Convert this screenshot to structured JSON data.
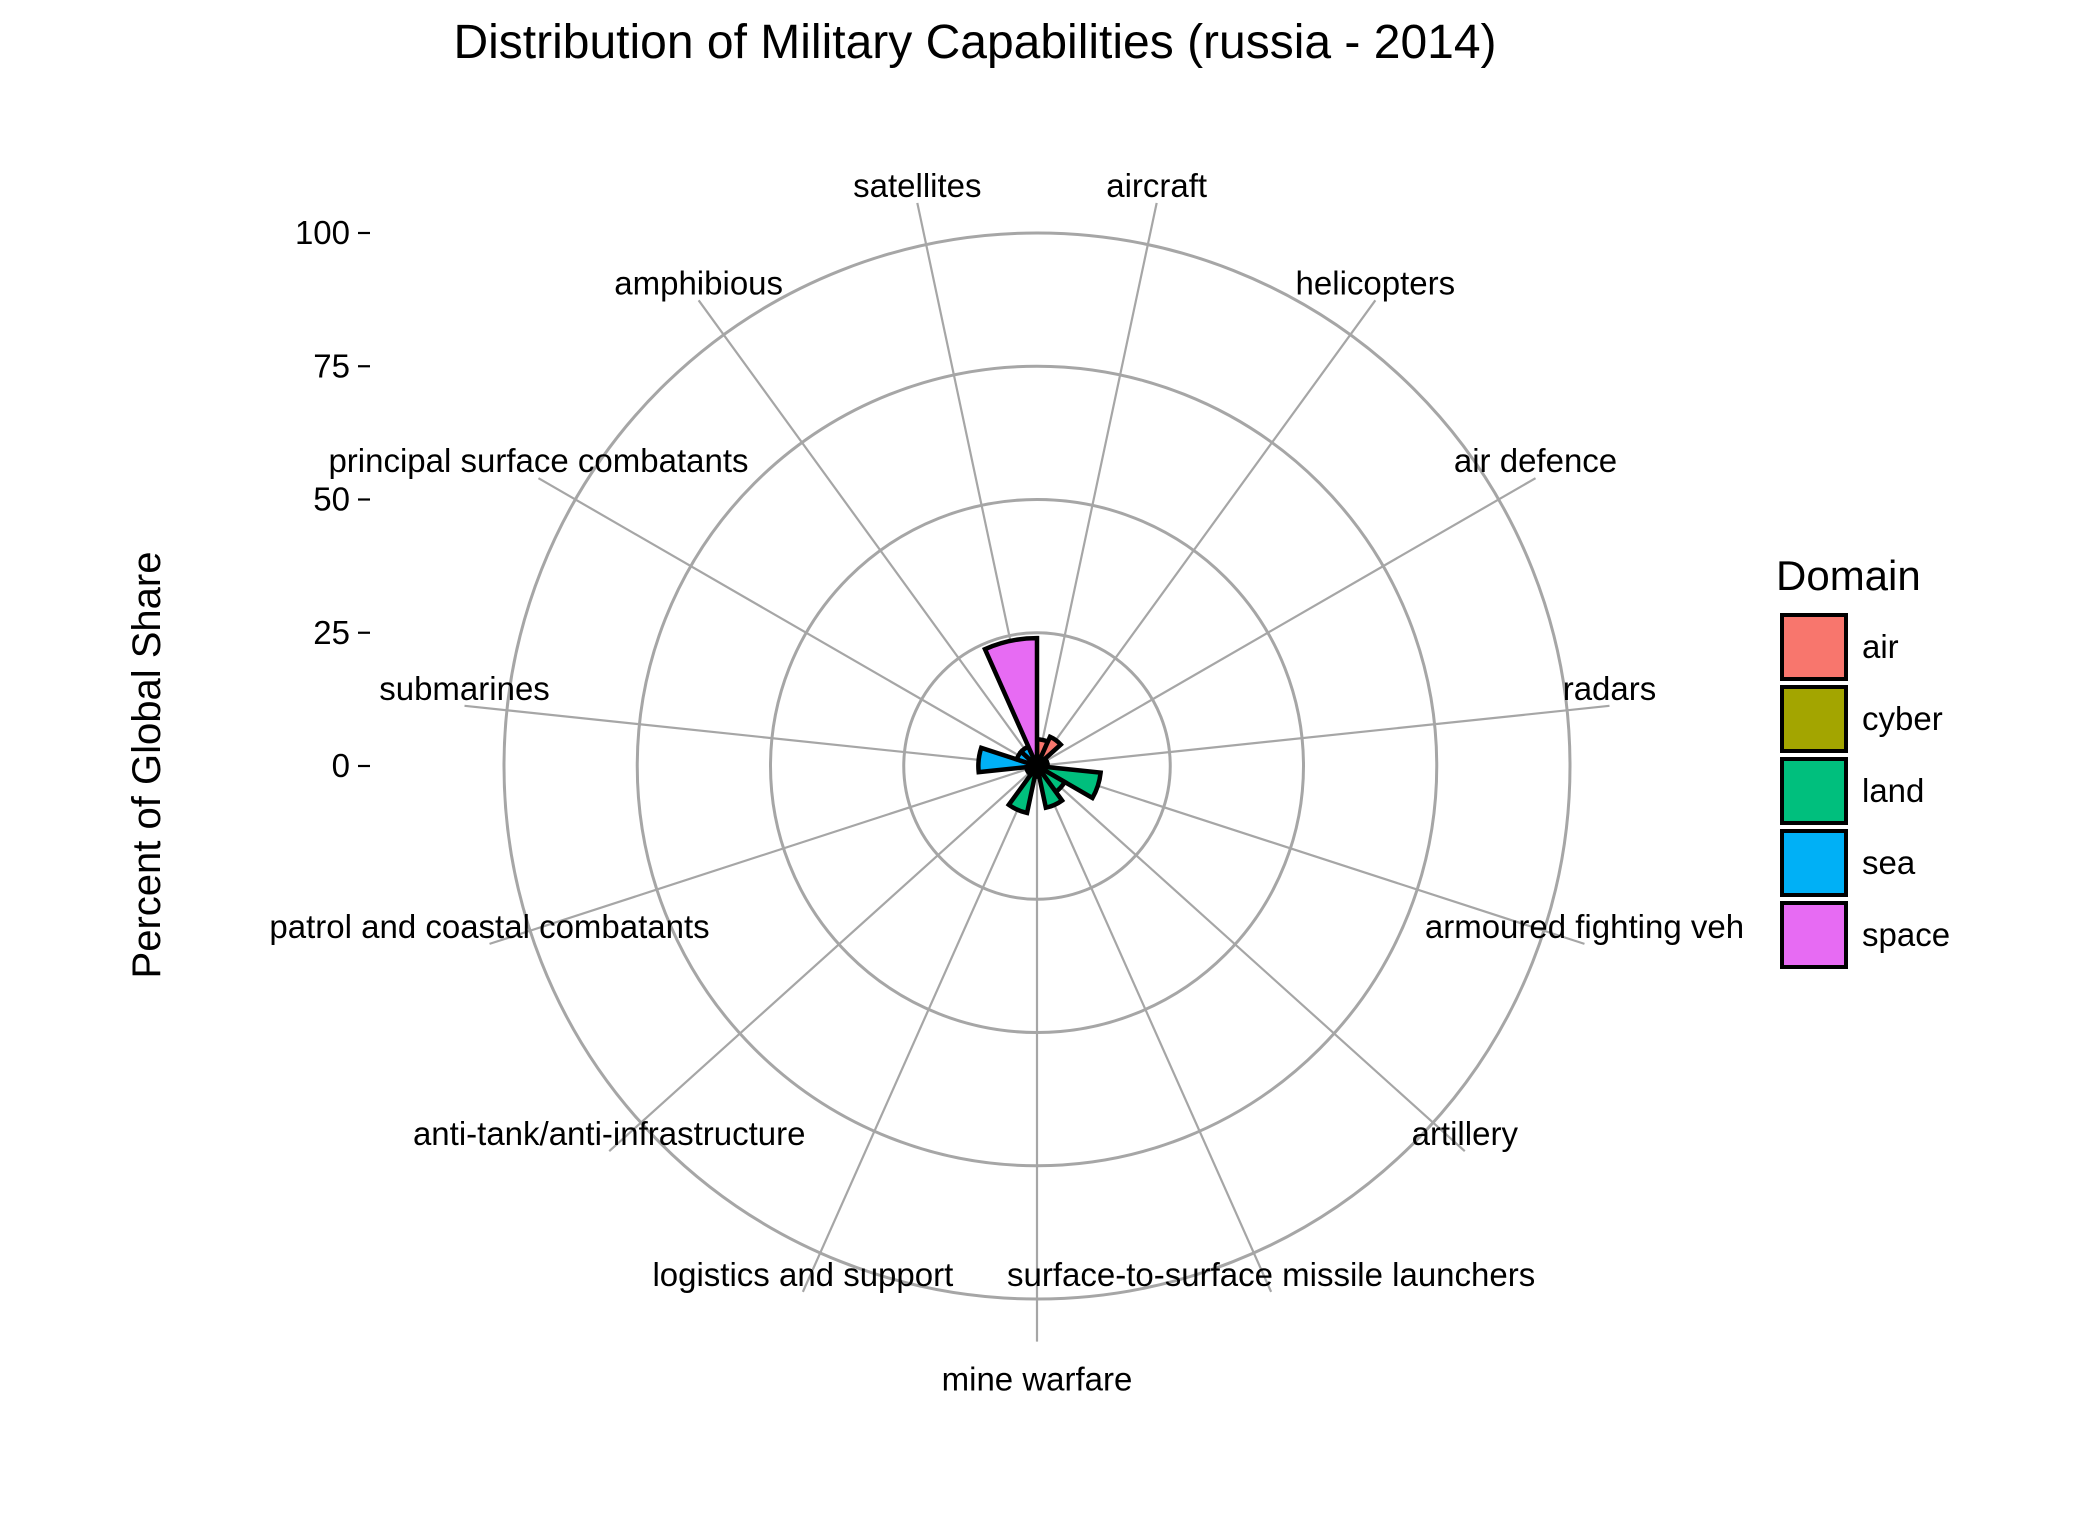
{
  "chart_data": {
    "type": "polar-bar",
    "title": "Distribution of Military Capabilities (russia - 2014)",
    "ylabel": "Percent of Global Share",
    "ylim": [
      0,
      100
    ],
    "yticks": [
      "0",
      "25",
      "50",
      "75",
      "100"
    ],
    "ytick_values": [
      0,
      25,
      50,
      75,
      100
    ],
    "grid": true,
    "legend": {
      "title": "Domain",
      "position": "right",
      "entries": [
        {
          "name": "air",
          "color": "#F8766D"
        },
        {
          "name": "cyber",
          "color": "#A3A500"
        },
        {
          "name": "land",
          "color": "#00BF7D"
        },
        {
          "name": "sea",
          "color": "#00B0F6"
        },
        {
          "name": "space",
          "color": "#E76BF3"
        }
      ]
    },
    "categories": [
      {
        "label": "aircraft",
        "domain": "air",
        "value": 5
      },
      {
        "label": "helicopters",
        "domain": "air",
        "value": 6
      },
      {
        "label": "air defence",
        "domain": "air",
        "value": 2
      },
      {
        "label": "radars",
        "domain": "air",
        "value": 2
      },
      {
        "label": "armoured fighting veh",
        "domain": "land",
        "value": 12
      },
      {
        "label": "artillery",
        "domain": "land",
        "value": 6
      },
      {
        "label": "surface-to-surface missile launchers",
        "domain": "land",
        "value": 8
      },
      {
        "label": "mine warfare",
        "domain": "sea",
        "value": 2
      },
      {
        "label": "logistics and support",
        "domain": "land",
        "value": 9
      },
      {
        "label": "anti-tank/anti-infrastructure",
        "domain": "land",
        "value": 2
      },
      {
        "label": "patrol and coastal combatants",
        "domain": "sea",
        "value": 2
      },
      {
        "label": "submarines",
        "domain": "sea",
        "value": 11
      },
      {
        "label": "principal surface combatants",
        "domain": "sea",
        "value": 4
      },
      {
        "label": "amphibious",
        "domain": "sea",
        "value": 4
      },
      {
        "label": "satellites",
        "domain": "space",
        "value": 24
      }
    ]
  }
}
